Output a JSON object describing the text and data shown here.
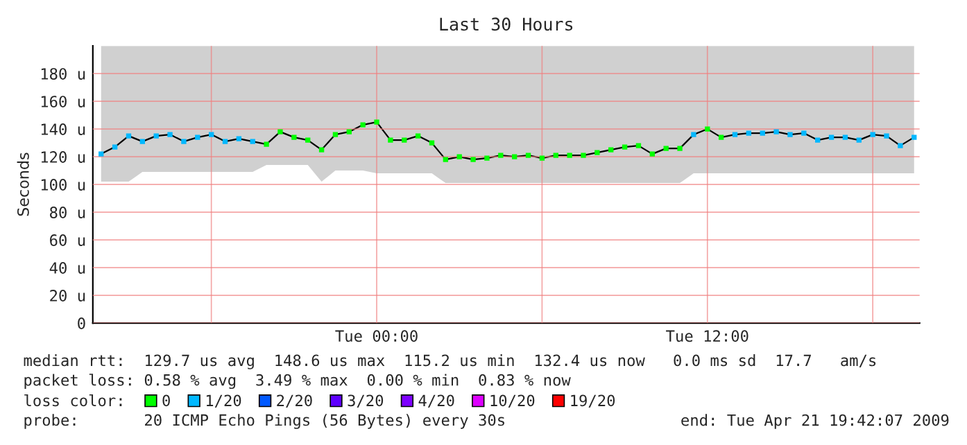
{
  "chart_data": {
    "type": "line",
    "title": "Last 30 Hours",
    "ylabel": "Seconds",
    "legend_title": "loss color:",
    "x": [
      "2009-04-20T14:00",
      "2009-04-20T14:30",
      "2009-04-20T15:00",
      "2009-04-20T15:30",
      "2009-04-20T16:00",
      "2009-04-20T16:30",
      "2009-04-20T17:00",
      "2009-04-20T17:30",
      "2009-04-20T18:00",
      "2009-04-20T18:30",
      "2009-04-20T19:00",
      "2009-04-20T19:30",
      "2009-04-20T20:00",
      "2009-04-20T20:30",
      "2009-04-20T21:00",
      "2009-04-20T21:30",
      "2009-04-20T22:00",
      "2009-04-20T22:30",
      "2009-04-20T23:00",
      "2009-04-20T23:30",
      "2009-04-21T00:00",
      "2009-04-21T00:30",
      "2009-04-21T01:00",
      "2009-04-21T01:30",
      "2009-04-21T02:00",
      "2009-04-21T02:30",
      "2009-04-21T03:00",
      "2009-04-21T03:30",
      "2009-04-21T04:00",
      "2009-04-21T04:30",
      "2009-04-21T05:00",
      "2009-04-21T05:30",
      "2009-04-21T06:00",
      "2009-04-21T06:30",
      "2009-04-21T07:00",
      "2009-04-21T07:30",
      "2009-04-21T08:00",
      "2009-04-21T08:30",
      "2009-04-21T09:00",
      "2009-04-21T09:30",
      "2009-04-21T10:00",
      "2009-04-21T10:30",
      "2009-04-21T11:00",
      "2009-04-21T11:30",
      "2009-04-21T12:00",
      "2009-04-21T12:30",
      "2009-04-21T13:00",
      "2009-04-21T13:30",
      "2009-04-21T14:00",
      "2009-04-21T14:30",
      "2009-04-21T15:00",
      "2009-04-21T15:30",
      "2009-04-21T16:00",
      "2009-04-21T16:30",
      "2009-04-21T17:00",
      "2009-04-21T17:30",
      "2009-04-21T18:00",
      "2009-04-21T18:30",
      "2009-04-21T19:00",
      "2009-04-21T19:30"
    ],
    "series": [
      {
        "color": "#000000",
        "marker": "none",
        "values": [
          122,
          127,
          135,
          131,
          135,
          136,
          131,
          134,
          136,
          131,
          133,
          131,
          129,
          138,
          134,
          132,
          125,
          136,
          138,
          143,
          145,
          132,
          132,
          135,
          130,
          118,
          120,
          118,
          119,
          121,
          120,
          121,
          119,
          121,
          121,
          121,
          123,
          125,
          127,
          128,
          122,
          126,
          126,
          136,
          140,
          134,
          136,
          137,
          137,
          138,
          136,
          137,
          132,
          134,
          134,
          132,
          136,
          135,
          128,
          134
        ],
        "lower": [
          102,
          102,
          102,
          109,
          109,
          109,
          109,
          109,
          109,
          109,
          109,
          109,
          114,
          114,
          114,
          114,
          102,
          110,
          110,
          110,
          108,
          108,
          108,
          108,
          108,
          101,
          101,
          101,
          101,
          101,
          101,
          101,
          101,
          101,
          101,
          101,
          101,
          101,
          101,
          101,
          101,
          101,
          101,
          108,
          108,
          108,
          108,
          108,
          108,
          108,
          108,
          108,
          108,
          108,
          108,
          108,
          108,
          108,
          108,
          108
        ],
        "upper": [
          200,
          200,
          200,
          200,
          200,
          200,
          200,
          200,
          200,
          200,
          200,
          200,
          200,
          200,
          200,
          200,
          200,
          200,
          200,
          200,
          200,
          200,
          200,
          200,
          200,
          200,
          200,
          200,
          200,
          200,
          200,
          200,
          200,
          200,
          200,
          200,
          200,
          200,
          200,
          200,
          200,
          200,
          200,
          200,
          200,
          200,
          200,
          200,
          200,
          200,
          200,
          200,
          200,
          200,
          200,
          200,
          200,
          200,
          200,
          200
        ]
      },
      {
        "type": "scatter",
        "name": "0",
        "color": "#00ff00",
        "marker": "square",
        "values": [
          null,
          null,
          null,
          null,
          null,
          null,
          null,
          null,
          null,
          null,
          null,
          null,
          129,
          138,
          134,
          132,
          125,
          136,
          138,
          143,
          145,
          132,
          132,
          135,
          130,
          118,
          120,
          118,
          119,
          121,
          120,
          121,
          119,
          121,
          121,
          121,
          123,
          125,
          127,
          128,
          122,
          126,
          126,
          null,
          140,
          134,
          null,
          null,
          null,
          null,
          null,
          null,
          null,
          null,
          null,
          null,
          null,
          null,
          null,
          null
        ]
      },
      {
        "type": "scatter",
        "name": "1/20",
        "color": "#00b8ff",
        "marker": "square",
        "values": [
          122,
          127,
          135,
          131,
          135,
          136,
          131,
          134,
          136,
          131,
          133,
          131,
          null,
          null,
          null,
          null,
          null,
          null,
          null,
          null,
          null,
          null,
          null,
          null,
          null,
          null,
          null,
          null,
          null,
          null,
          null,
          null,
          null,
          null,
          null,
          null,
          null,
          null,
          null,
          null,
          null,
          null,
          null,
          136,
          null,
          null,
          136,
          137,
          137,
          138,
          136,
          137,
          132,
          134,
          134,
          132,
          136,
          135,
          128,
          134
        ]
      },
      {
        "type": "scatter",
        "name": "2/20",
        "color": "#0059ff",
        "marker": "square",
        "values": [
          null,
          null,
          null,
          null,
          null,
          null,
          null,
          null,
          null,
          null,
          null,
          null,
          null,
          null,
          null,
          null,
          null,
          null,
          null,
          null,
          null,
          null,
          null,
          null,
          null,
          null,
          null,
          null,
          null,
          null,
          null,
          null,
          null,
          null,
          null,
          null,
          null,
          null,
          null,
          null,
          null,
          null,
          null,
          null,
          null,
          null,
          null,
          null,
          null,
          null,
          null,
          null,
          null,
          null,
          null,
          null,
          null,
          null,
          null,
          null
        ]
      },
      {
        "type": "scatter",
        "name": "3/20",
        "color": "#5e00ff",
        "marker": "square",
        "values": [
          null,
          null,
          null,
          null,
          null,
          null,
          null,
          null,
          null,
          null,
          null,
          null,
          null,
          null,
          null,
          null,
          null,
          null,
          null,
          null,
          null,
          null,
          null,
          null,
          null,
          null,
          null,
          null,
          null,
          null,
          null,
          null,
          null,
          null,
          null,
          null,
          null,
          null,
          null,
          null,
          null,
          null,
          null,
          null,
          null,
          null,
          null,
          null,
          null,
          null,
          null,
          null,
          null,
          null,
          null,
          null,
          null,
          null,
          null,
          null
        ]
      },
      {
        "type": "scatter",
        "name": "4/20",
        "color": "#7e00ff",
        "marker": "square",
        "values": [
          null,
          null,
          null,
          null,
          null,
          null,
          null,
          null,
          null,
          null,
          null,
          null,
          null,
          null,
          null,
          null,
          null,
          null,
          null,
          null,
          null,
          null,
          null,
          null,
          null,
          null,
          null,
          null,
          null,
          null,
          null,
          null,
          null,
          null,
          null,
          null,
          null,
          null,
          null,
          null,
          null,
          null,
          null,
          null,
          null,
          null,
          null,
          null,
          null,
          null,
          null,
          null,
          null,
          null,
          null,
          null,
          null,
          null,
          null,
          null
        ]
      },
      {
        "type": "scatter",
        "name": "10/20",
        "color": "#dd00ff",
        "marker": "square",
        "values": [
          null,
          null,
          null,
          null,
          null,
          null,
          null,
          null,
          null,
          null,
          null,
          null,
          null,
          null,
          null,
          null,
          null,
          null,
          null,
          null,
          null,
          null,
          null,
          null,
          null,
          null,
          null,
          null,
          null,
          null,
          null,
          null,
          null,
          null,
          null,
          null,
          null,
          null,
          null,
          null,
          null,
          null,
          null,
          null,
          null,
          null,
          null,
          null,
          null,
          null,
          null,
          null,
          null,
          null,
          null,
          null,
          null,
          null,
          null,
          null
        ]
      },
      {
        "type": "scatter",
        "name": "19/20",
        "color": "#ff0000",
        "marker": "square",
        "values": [
          null,
          null,
          null,
          null,
          null,
          null,
          null,
          null,
          null,
          null,
          null,
          null,
          null,
          null,
          null,
          null,
          null,
          null,
          null,
          null,
          null,
          null,
          null,
          null,
          null,
          null,
          null,
          null,
          null,
          null,
          null,
          null,
          null,
          null,
          null,
          null,
          null,
          null,
          null,
          null,
          null,
          null,
          null,
          null,
          null,
          null,
          null,
          null,
          null,
          null,
          null,
          null,
          null,
          null,
          null,
          null,
          null,
          null,
          null,
          null
        ]
      }
    ],
    "xlim": [
      "2009-04-20T13:42",
      "2009-04-21T19:42"
    ],
    "xticks": [
      {
        "value": "2009-04-20T18:00",
        "label": null
      },
      {
        "value": "2009-04-21T00:00",
        "label": "Tue 00:00"
      },
      {
        "value": "2009-04-21T06:00",
        "label": null
      },
      {
        "value": "2009-04-21T12:00",
        "label": "Tue 12:00"
      },
      {
        "value": "2009-04-21T18:00",
        "label": null
      }
    ],
    "ylim": [
      0,
      200
    ],
    "yticks": [
      0,
      {
        "value": 20,
        "label": "20 u"
      },
      {
        "value": 40,
        "label": "40 u"
      },
      {
        "value": 60,
        "label": "60 u"
      },
      {
        "value": 80,
        "label": "80 u"
      },
      {
        "value": 100,
        "label": "100 u"
      },
      {
        "value": 120,
        "label": "120 u"
      },
      {
        "value": 140,
        "label": "140 u"
      },
      {
        "value": 160,
        "label": "160 u"
      },
      {
        "value": 180,
        "label": "180 u"
      }
    ],
    "grid": true,
    "legend": "bottom",
    "annotations": [
      "median rtt:  129.7 us avg  148.6 us max  115.2 us min  132.4 us now   0.0 ms sd  17.7   am/s",
      "packet loss: 0.58 % avg  3.49 % max  0.00 % min  0.83 % now",
      "probe:       20 ICMP Echo Pings (56 Bytes) every 30s",
      "end: Tue Apr 21 19:42:07 2009"
    ]
  }
}
